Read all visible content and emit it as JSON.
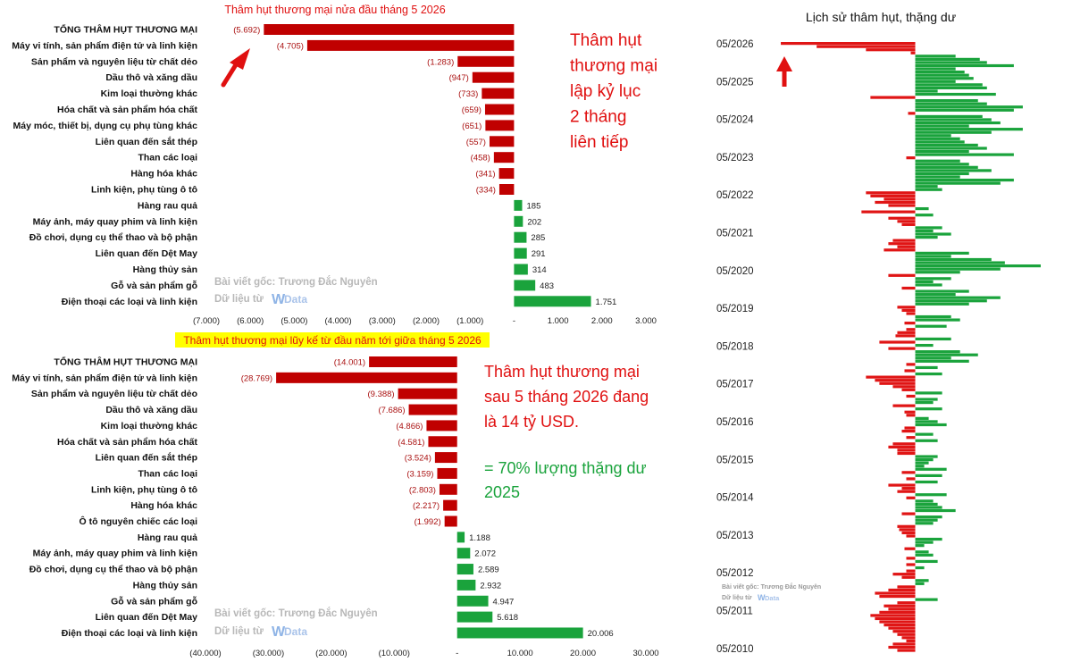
{
  "chart_data": [
    {
      "type": "bar",
      "orientation": "horizontal",
      "title": "Thâm hụt thương mại nửa đầu tháng 5 2026",
      "categories": [
        "TỔNG THÂM HỤT THƯƠNG MẠI",
        "Máy vi tính, sản phẩm điện tử và linh kiện",
        "Sản phẩm và nguyên liệu từ chất dẻo",
        "Dầu thô và xăng dầu",
        "Kim loại thường khác",
        "Hóa chất và sản phẩm hóa chất",
        "Máy móc, thiết bị, dụng cụ phụ tùng khác",
        "Liên quan đến sắt thép",
        "Than các loại",
        "Hàng hóa khác",
        "Linh kiện, phụ tùng ô tô",
        "Hàng rau quả",
        "Máy ảnh, máy quay phim và linh kiện",
        "Đồ chơi, dụng cụ thể thao và bộ phận",
        "Liên quan đến Dệt May",
        "Hàng thủy sản",
        "Gỗ và sản phẩm gỗ",
        "Điện thoại các loại và linh kiện"
      ],
      "values": [
        -5692,
        -4705,
        -1283,
        -947,
        -733,
        -659,
        -651,
        -557,
        -458,
        -341,
        -334,
        185,
        202,
        285,
        291,
        314,
        483,
        1751
      ],
      "value_labels": [
        "(5.692)",
        "(4.705)",
        "(1.283)",
        "(947)",
        "(733)",
        "(659)",
        "(651)",
        "(557)",
        "(458)",
        "(341)",
        "(334)",
        "185",
        "202",
        "285",
        "291",
        "314",
        "483",
        "1.751"
      ],
      "xlim": [
        -7000,
        3000
      ],
      "x_ticks": [
        -7000,
        -6000,
        -5000,
        -4000,
        -3000,
        -2000,
        -1000,
        0,
        1000,
        2000,
        3000
      ],
      "x_tick_labels": [
        "(7.000)",
        "(6.000)",
        "(5.000)",
        "(4.000)",
        "(3.000)",
        "(2.000)",
        "(1.000)",
        "-",
        "1.000",
        "2.000",
        "3.000"
      ],
      "annotation": [
        "Thâm hụt",
        "thương mại",
        "lập kỷ lục",
        "2 tháng",
        "liên tiếp"
      ],
      "watermark": [
        "Bài viết gốc: Trương Đắc Nguyên",
        "Dữ liệu từ",
        "W",
        "Data"
      ],
      "colors": {
        "negative": "#c00000",
        "positive": "#1aa33c"
      }
    },
    {
      "type": "bar",
      "orientation": "horizontal",
      "title": "Thâm hụt thương mại lũy kế từ đầu năm tới giữa tháng 5 2026",
      "categories": [
        "TỔNG THÂM HỤT THƯƠNG MẠI",
        "Máy vi tính, sản phẩm điện tử và linh kiện",
        "Sản phẩm và nguyên liệu từ chất dẻo",
        "Dầu thô và xăng dầu",
        "Kim loại thường khác",
        "Hóa chất và sản phẩm hóa chất",
        "Liên quan đến sắt thép",
        "Than các loại",
        "Linh kiện, phụ tùng ô tô",
        "Hàng hóa khác",
        "Ô tô nguyên chiếc các loại",
        "Hàng rau quả",
        "Máy ảnh, máy quay phim và linh kiện",
        "Đồ chơi, dụng cụ thể thao và bộ phận",
        "Hàng thủy sản",
        "Gỗ và sản phẩm gỗ",
        "Liên quan đến Dệt May",
        "Điện thoại các loại và linh kiện"
      ],
      "values": [
        -14001,
        -28769,
        -9388,
        -7686,
        -4866,
        -4581,
        -3524,
        -3159,
        -2803,
        -2217,
        -1992,
        1188,
        2072,
        2589,
        2932,
        4947,
        5618,
        20006
      ],
      "value_labels": [
        "(14.001)",
        "(28.769)",
        "(9.388)",
        "(7.686)",
        "(4.866)",
        "(4.581)",
        "(3.524)",
        "(3.159)",
        "(2.803)",
        "(2.217)",
        "(1.992)",
        "1.188",
        "2.072",
        "2.589",
        "2.932",
        "4.947",
        "5.618",
        "20.006"
      ],
      "xlim": [
        -40000,
        30000
      ],
      "x_ticks": [
        -40000,
        -30000,
        -20000,
        -10000,
        0,
        10000,
        20000,
        30000
      ],
      "x_tick_labels": [
        "(40.000)",
        "(30.000)",
        "(20.000)",
        "(10.000)",
        "-",
        "10.000",
        "20.000",
        "30.000"
      ],
      "annotation_red": [
        "Thâm hụt thương mại",
        "sau 5 tháng 2026 đang",
        "là 14 tỷ USD."
      ],
      "annotation_green": [
        "= 70% lượng thặng dư",
        "2025"
      ],
      "watermark": [
        "Bài viết gốc: Trương Đắc Nguyên",
        "Dữ liệu từ",
        "W",
        "Data"
      ],
      "colors": {
        "negative": "#c00000",
        "positive": "#1aa33c"
      }
    },
    {
      "type": "bar",
      "orientation": "horizontal",
      "title": "Lịch sử thâm hụt, thặng dư",
      "description_values": "monthly balance from 05/2010 (bottom) to 05/2026 (top); positive = surplus (green), negative = deficit (red); approximate index units",
      "y_tick_labels": [
        "05/2026",
        "05/2025",
        "05/2024",
        "05/2023",
        "05/2022",
        "05/2021",
        "05/2020",
        "05/2019",
        "05/2018",
        "05/2017",
        "05/2016",
        "05/2015",
        "05/2014",
        "05/2013",
        "05/2012",
        "05/2011",
        "05/2010"
      ],
      "xlim": [
        -160,
        145
      ],
      "values_newest_first": [
        -150,
        -110,
        -55,
        -5,
        45,
        72,
        80,
        110,
        45,
        55,
        60,
        65,
        45,
        75,
        80,
        25,
        90,
        -50,
        70,
        80,
        120,
        110,
        -8,
        75,
        85,
        95,
        60,
        120,
        85,
        40,
        50,
        55,
        70,
        80,
        60,
        110,
        -10,
        50,
        60,
        70,
        85,
        60,
        50,
        110,
        95,
        25,
        30,
        -55,
        -50,
        -35,
        -45,
        -30,
        15,
        -60,
        20,
        -30,
        -20,
        -15,
        30,
        20,
        40,
        25,
        -25,
        -30,
        -20,
        -35,
        60,
        40,
        85,
        100,
        140,
        95,
        50,
        -30,
        40,
        20,
        30,
        -15,
        60,
        45,
        95,
        80,
        60,
        -20,
        -15,
        -10,
        40,
        50,
        -12,
        35,
        -10,
        -20,
        -22,
        40,
        -40,
        20,
        -30,
        50,
        70,
        40,
        60,
        -10,
        25,
        -12,
        30,
        -55,
        -45,
        -40,
        -25,
        -15,
        30,
        -10,
        25,
        20,
        -25,
        30,
        -12,
        -10,
        15,
        25,
        35,
        -12,
        -15,
        20,
        -10,
        25,
        -25,
        -30,
        -20,
        -20,
        25,
        20,
        15,
        10,
        35,
        -15,
        30,
        -10,
        25,
        -30,
        -15,
        -20,
        35,
        -10,
        20,
        25,
        30,
        45,
        -15,
        30,
        25,
        20,
        -20,
        -18,
        -15,
        -10,
        30,
        20,
        10,
        -12,
        15,
        20,
        -10,
        25,
        -10,
        10,
        -10,
        -25,
        -15,
        15,
        10,
        -20,
        -30,
        -45,
        -40,
        25,
        -20,
        -35,
        -30,
        -40,
        -50,
        -45,
        -40,
        -35,
        -30,
        -25,
        -20,
        -15,
        -10,
        -25,
        -30,
        -20
      ],
      "watermark": [
        "Bài viết gốc: Trương Đắc Nguyên",
        "Dữ liệu từ",
        "W",
        "Data"
      ],
      "colors": {
        "negative": "#e01515",
        "positive": "#1aa33c"
      }
    }
  ]
}
